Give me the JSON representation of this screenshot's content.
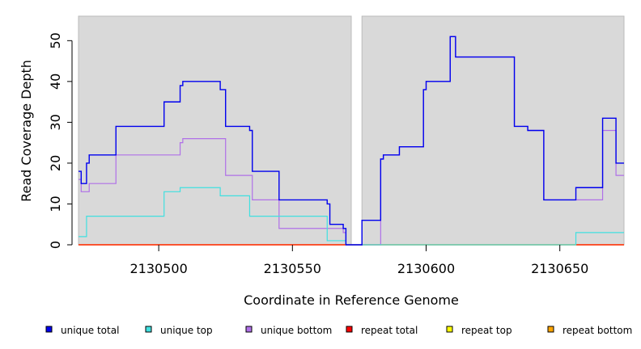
{
  "chart_data": {
    "type": "line",
    "title": "",
    "xlabel": "Coordinate in Reference Genome",
    "ylabel": "Read Coverage Depth",
    "xlim": [
      2130470,
      2130674
    ],
    "ylim": [
      0,
      56
    ],
    "x_ticks": [
      2130500,
      2130550,
      2130600,
      2130650
    ],
    "y_ticks": [
      0,
      10,
      20,
      30,
      40,
      50
    ],
    "grid": false,
    "gap": [
      2130572,
      2130576
    ],
    "step": true,
    "legend_position": "bottom",
    "series": [
      {
        "name": "unique total",
        "color": "#0000ee",
        "points": [
          [
            2130470,
            18
          ],
          [
            2130471,
            15
          ],
          [
            2130473,
            20
          ],
          [
            2130474,
            22
          ],
          [
            2130484,
            29
          ],
          [
            2130502,
            35
          ],
          [
            2130508,
            39
          ],
          [
            2130509,
            40
          ],
          [
            2130523,
            38
          ],
          [
            2130525,
            29
          ],
          [
            2130534,
            28
          ],
          [
            2130535,
            18
          ],
          [
            2130545,
            11
          ],
          [
            2130563,
            10
          ],
          [
            2130564,
            5
          ],
          [
            2130569,
            4
          ],
          [
            2130570,
            0
          ],
          [
            2130576,
            6
          ],
          [
            2130583,
            21
          ],
          [
            2130584,
            22
          ],
          [
            2130590,
            24
          ],
          [
            2130599,
            38
          ],
          [
            2130600,
            40
          ],
          [
            2130609,
            51
          ],
          [
            2130611,
            46
          ],
          [
            2130633,
            29
          ],
          [
            2130638,
            28
          ],
          [
            2130644,
            11
          ],
          [
            2130656,
            14
          ],
          [
            2130666,
            31
          ],
          [
            2130671,
            20
          ],
          [
            2130674,
            20
          ]
        ]
      },
      {
        "name": "unique top",
        "color": "#40e0e0",
        "points": [
          [
            2130470,
            2
          ],
          [
            2130473,
            7
          ],
          [
            2130502,
            13
          ],
          [
            2130508,
            14
          ],
          [
            2130523,
            12
          ],
          [
            2130534,
            7
          ],
          [
            2130563,
            1
          ],
          [
            2130570,
            0
          ],
          [
            2130576,
            0
          ],
          [
            2130656,
            3
          ],
          [
            2130674,
            3
          ]
        ]
      },
      {
        "name": "unique bottom",
        "color": "#b070e8",
        "points": [
          [
            2130470,
            16
          ],
          [
            2130471,
            13
          ],
          [
            2130474,
            15
          ],
          [
            2130484,
            22
          ],
          [
            2130508,
            25
          ],
          [
            2130509,
            26
          ],
          [
            2130525,
            17
          ],
          [
            2130535,
            11
          ],
          [
            2130545,
            4
          ],
          [
            2130569,
            3
          ],
          [
            2130570,
            0
          ],
          [
            2130576,
            0
          ],
          [
            2130583,
            21
          ],
          [
            2130584,
            22
          ],
          [
            2130590,
            24
          ],
          [
            2130599,
            38
          ],
          [
            2130600,
            40
          ],
          [
            2130609,
            51
          ],
          [
            2130611,
            46
          ],
          [
            2130633,
            29
          ],
          [
            2130638,
            28
          ],
          [
            2130644,
            11
          ],
          [
            2130666,
            28
          ],
          [
            2130671,
            17
          ],
          [
            2130674,
            17
          ]
        ]
      },
      {
        "name": "repeat total",
        "color": "#ff0000",
        "points": [
          [
            2130470,
            0
          ],
          [
            2130674,
            0
          ]
        ]
      },
      {
        "name": "repeat top",
        "color": "#ffff00",
        "points": [
          [
            2130470,
            0
          ],
          [
            2130674,
            0
          ]
        ]
      },
      {
        "name": "repeat bottom",
        "color": "#ffa500",
        "points": [
          [
            2130470,
            0
          ],
          [
            2130674,
            0
          ]
        ]
      }
    ]
  }
}
